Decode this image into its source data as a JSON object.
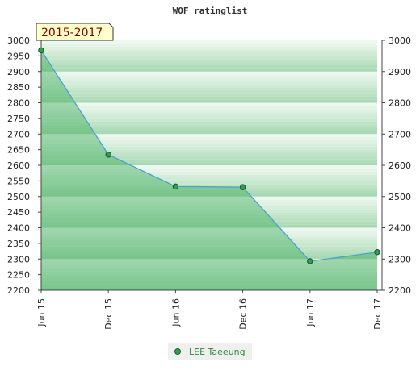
{
  "chart_data": {
    "type": "area",
    "title": "WOF ratinglist",
    "period_label": "2015-2017",
    "categories": [
      "Jun 15",
      "Dec 15",
      "Jun 16",
      "Dec 16",
      "Jun 17",
      "Dec 17"
    ],
    "series": [
      {
        "name": "LEE Taeeung",
        "values": [
          2968,
          2634,
          2532,
          2530,
          2293,
          2322
        ]
      }
    ],
    "ylim": [
      2200,
      3000
    ],
    "yticks": [
      2200,
      2250,
      2300,
      2350,
      2400,
      2450,
      2500,
      2550,
      2600,
      2650,
      2700,
      2750,
      2800,
      2850,
      2900,
      2950,
      3000
    ],
    "yticks_right": [
      2200,
      2300,
      2400,
      2500,
      2600,
      2700,
      2800,
      2900,
      3000
    ],
    "colors": {
      "line": "#4f9fd0",
      "area": "#3fae5a",
      "marker": "#2f9e4f",
      "band_dark": "#a9d9b4",
      "band_light": "#f4fbf5"
    }
  }
}
